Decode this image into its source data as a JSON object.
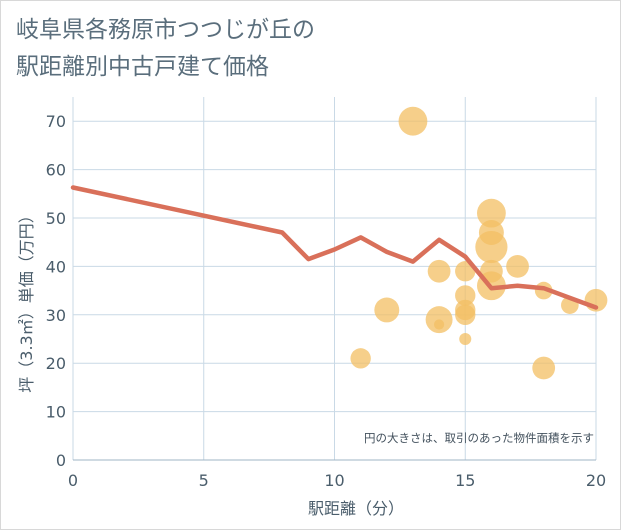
{
  "title_lines": [
    "岐阜県各務原市つつじが丘の",
    "駅距離別中古戸建て価格"
  ],
  "chart_data": {
    "type": "scatter",
    "title": "岐阜県各務原市つつじが丘の駅距離別中古戸建て価格",
    "xlabel": "駅距離（分）",
    "ylabel": "坪（3.3㎡）単価（万円）",
    "xlim": [
      0,
      20
    ],
    "ylim": [
      0,
      75
    ],
    "xticks": [
      0,
      5,
      10,
      15,
      20
    ],
    "yticks": [
      0,
      10,
      20,
      30,
      40,
      50,
      60,
      70
    ],
    "grid": true,
    "note": "円の大きさは、取引のあった物件面積を示す",
    "colors": {
      "points": "#f3bf63",
      "line": "#d9705a",
      "grid": "#c9d9e6"
    },
    "points": [
      {
        "x": 13,
        "y": 70,
        "size": 4
      },
      {
        "x": 11,
        "y": 21,
        "size": 2
      },
      {
        "x": 12,
        "y": 31,
        "size": 3
      },
      {
        "x": 14,
        "y": 39,
        "size": 2.5
      },
      {
        "x": 14,
        "y": 29,
        "size": 3.5
      },
      {
        "x": 14,
        "y": 28,
        "size": 0.5
      },
      {
        "x": 15,
        "y": 39,
        "size": 2
      },
      {
        "x": 15,
        "y": 34,
        "size": 2
      },
      {
        "x": 15,
        "y": 31,
        "size": 2
      },
      {
        "x": 15,
        "y": 30,
        "size": 2
      },
      {
        "x": 15,
        "y": 25,
        "size": 0.7
      },
      {
        "x": 16,
        "y": 51,
        "size": 4
      },
      {
        "x": 16,
        "y": 47,
        "size": 3
      },
      {
        "x": 16,
        "y": 44,
        "size": 5
      },
      {
        "x": 16,
        "y": 39,
        "size": 2.5
      },
      {
        "x": 16,
        "y": 36,
        "size": 4
      },
      {
        "x": 17,
        "y": 40,
        "size": 2.5
      },
      {
        "x": 18,
        "y": 35,
        "size": 1.5
      },
      {
        "x": 18,
        "y": 19,
        "size": 2.5
      },
      {
        "x": 19,
        "y": 32,
        "size": 1.5
      },
      {
        "x": 20,
        "y": 33,
        "size": 2.5
      }
    ],
    "trend": {
      "x": [
        0,
        8,
        9,
        10,
        11,
        12,
        13,
        14,
        15,
        16,
        17,
        18,
        19,
        20
      ],
      "y": [
        56.3,
        47,
        41.5,
        43.5,
        46,
        43,
        41,
        45.5,
        42,
        35.5,
        36,
        35.5,
        33.5,
        31.5
      ]
    }
  }
}
